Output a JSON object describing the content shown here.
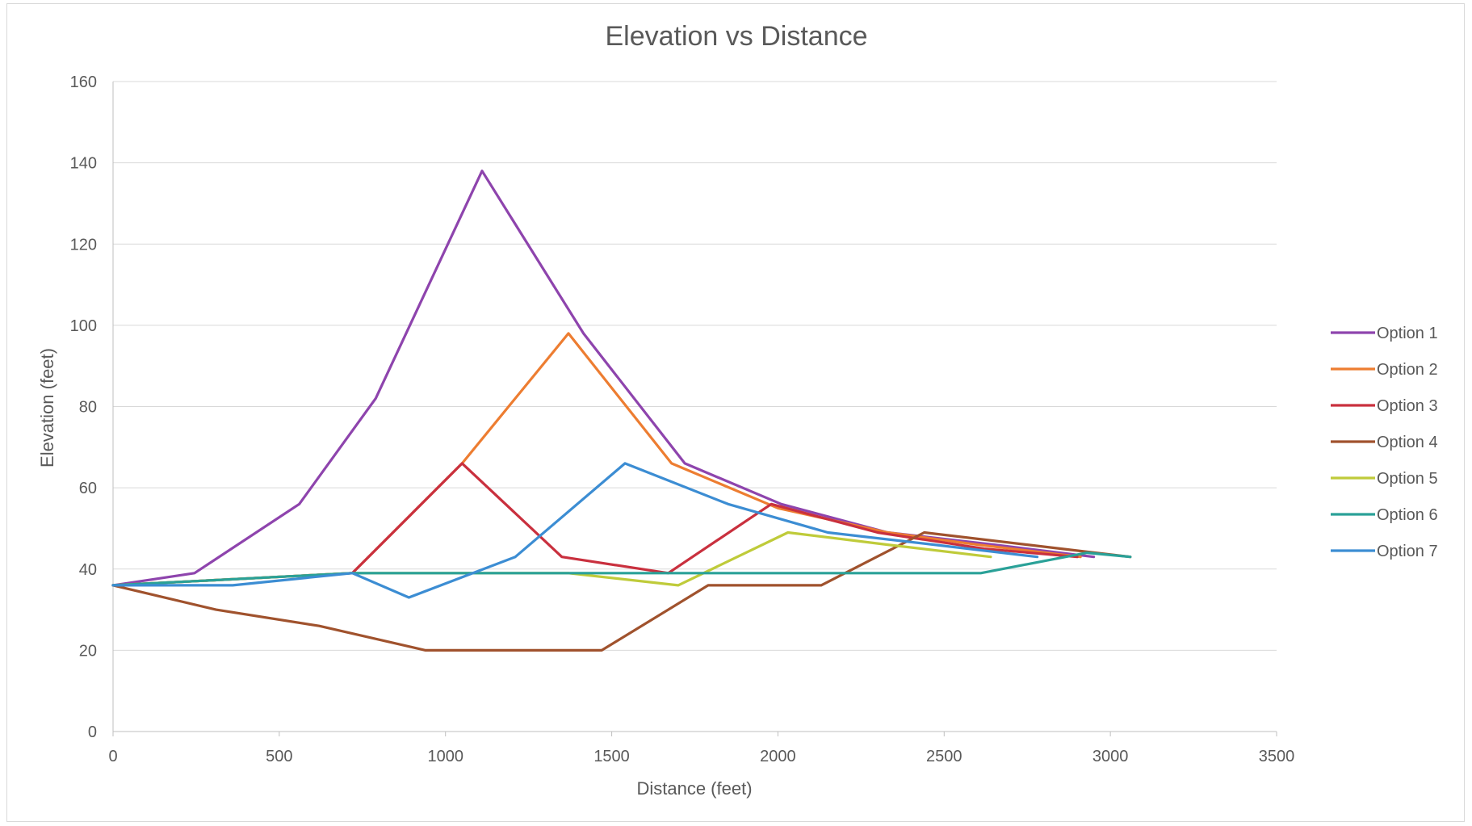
{
  "chart_data": {
    "type": "line",
    "title": "Elevation vs Distance",
    "xlabel": "Distance (feet)",
    "ylabel": "Elevation (feet)",
    "xlim": [
      0,
      3500
    ],
    "ylim": [
      0,
      160
    ],
    "x_ticks": [
      "0",
      "500",
      "1000",
      "1500",
      "2000",
      "2500",
      "3000",
      "3500"
    ],
    "y_ticks": [
      "0",
      "20",
      "40",
      "60",
      "80",
      "100",
      "120",
      "140",
      "160"
    ],
    "grid": "horizontal",
    "legend": "right",
    "series": [
      {
        "name": "Option 1",
        "color": "#8E44AD",
        "color_hex": "#8E44AD",
        "points": [
          [
            0,
            36
          ],
          [
            245,
            39
          ],
          [
            560,
            56
          ],
          [
            790,
            82
          ],
          [
            1110,
            138
          ],
          [
            1415,
            98
          ],
          [
            1720,
            66
          ],
          [
            2010,
            56
          ],
          [
            2330,
            49
          ],
          [
            2650,
            46
          ],
          [
            2950,
            43
          ]
        ]
      },
      {
        "name": "Option 2",
        "color": "#ED7D31",
        "points": [
          [
            0,
            36
          ],
          [
            720,
            39
          ],
          [
            1050,
            66
          ],
          [
            1370,
            98
          ],
          [
            1680,
            66
          ],
          [
            2000,
            55
          ],
          [
            2330,
            49
          ],
          [
            2600,
            46
          ],
          [
            2910,
            43
          ]
        ]
      },
      {
        "name": "Option 3",
        "color": "#C9303E",
        "points": [
          [
            0,
            36
          ],
          [
            720,
            39
          ],
          [
            1050,
            66
          ],
          [
            1350,
            43
          ],
          [
            1670,
            39
          ],
          [
            1980,
            56
          ],
          [
            2300,
            49
          ],
          [
            2620,
            45
          ],
          [
            2900,
            43
          ]
        ]
      },
      {
        "name": "Option 4",
        "color": "#A0522D",
        "points": [
          [
            0,
            36
          ],
          [
            310,
            30
          ],
          [
            620,
            26
          ],
          [
            940,
            20
          ],
          [
            1150,
            20
          ],
          [
            1470,
            20
          ],
          [
            1790,
            36
          ],
          [
            2130,
            36
          ],
          [
            2440,
            49
          ],
          [
            2750,
            46
          ],
          [
            3060,
            43
          ]
        ]
      },
      {
        "name": "Option 5",
        "color": "#BFCB3A",
        "points": [
          [
            0,
            36
          ],
          [
            720,
            39
          ],
          [
            1370,
            39
          ],
          [
            1700,
            36
          ],
          [
            2030,
            49
          ],
          [
            2330,
            46
          ],
          [
            2640,
            43
          ]
        ]
      },
      {
        "name": "Option 6",
        "color": "#2AA198",
        "points": [
          [
            0,
            36
          ],
          [
            720,
            39
          ],
          [
            2610,
            39
          ],
          [
            2930,
            44
          ],
          [
            3060,
            43
          ]
        ]
      },
      {
        "name": "Option 7",
        "color": "#3C8DD3",
        "points": [
          [
            0,
            36
          ],
          [
            360,
            36
          ],
          [
            720,
            39
          ],
          [
            890,
            33
          ],
          [
            1210,
            43
          ],
          [
            1540,
            66
          ],
          [
            1850,
            56
          ],
          [
            2150,
            49
          ],
          [
            2470,
            46
          ],
          [
            2780,
            43
          ]
        ]
      }
    ]
  }
}
